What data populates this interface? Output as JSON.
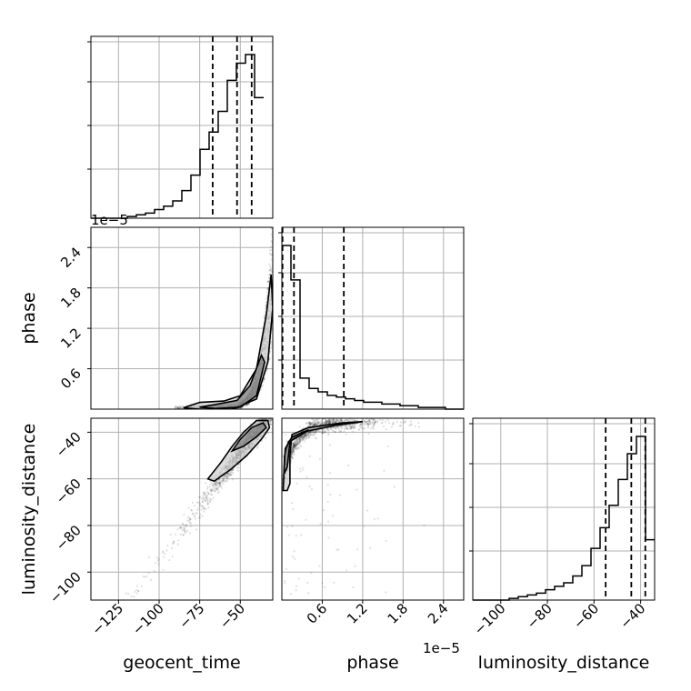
{
  "chart_data": {
    "type": "corner",
    "colors": {
      "grid": "#b0b0b0",
      "line": "#000000",
      "points": "#000000",
      "background": "#ffffff"
    },
    "variables": [
      {
        "name": "geocent_time",
        "range": [
          -142,
          -30
        ],
        "ticks": [
          -125,
          -100,
          -75,
          -50
        ],
        "tick_labels": [
          "−125",
          "−100",
          "−75",
          "−50"
        ],
        "quantiles": [
          -67,
          -52,
          -43
        ]
      },
      {
        "name": "phase",
        "offset_label": "1e−5",
        "range": [
          0,
          2.7
        ],
        "ticks": [
          0.6,
          1.2,
          1.8,
          2.4
        ],
        "tick_labels": [
          "0.6",
          "1.2",
          "1.8",
          "2.4"
        ],
        "quantiles": [
          0.01,
          0.18,
          0.92
        ]
      },
      {
        "name": "luminosity_distance",
        "range": [
          -112,
          -34
        ],
        "ticks": [
          -100,
          -80,
          -60,
          -40
        ],
        "tick_labels": [
          "−100",
          "−80",
          "−60",
          "−40"
        ],
        "quantiles": [
          -55,
          -44,
          -38
        ]
      }
    ],
    "top_offset_label": "1e−5",
    "histograms": [
      {
        "variable": "geocent_time",
        "bin_width": 5.6,
        "counts": [
          0,
          0,
          0,
          0,
          1,
          2,
          3,
          5,
          7,
          10,
          16,
          25,
          40,
          50,
          62,
          80,
          90,
          95,
          70
        ]
      },
      {
        "variable": "phase",
        "bin_width": 0.135,
        "counts": [
          95,
          75,
          18,
          12,
          10,
          8,
          7,
          6,
          5,
          4,
          4,
          3,
          3,
          2,
          2,
          1,
          1,
          1,
          0,
          0
        ]
      },
      {
        "variable": "luminosity_distance",
        "bin_width": 3.9,
        "counts": [
          0,
          0,
          0,
          0,
          1,
          2,
          3,
          4,
          6,
          8,
          10,
          14,
          20,
          30,
          42,
          55,
          70,
          85,
          95,
          35
        ]
      }
    ],
    "pairs": [
      {
        "x": "geocent_time",
        "y": "phase",
        "contours": [
          [
            [
              -85,
              0.02
            ],
            [
              -75,
              0.1
            ],
            [
              -60,
              0.12
            ],
            [
              -50,
              0.2
            ],
            [
              -40,
              0.6
            ],
            [
              -34,
              1.4
            ],
            [
              -31,
              2.0
            ],
            [
              -30,
              1.5
            ],
            [
              -33,
              0.7
            ],
            [
              -40,
              0.15
            ],
            [
              -55,
              0.0
            ],
            [
              -75,
              0.0
            ],
            [
              -85,
              0.02
            ]
          ],
          [
            [
              -75,
              0.03
            ],
            [
              -65,
              0.07
            ],
            [
              -52,
              0.13
            ],
            [
              -44,
              0.35
            ],
            [
              -37,
              0.8
            ],
            [
              -35,
              0.7
            ],
            [
              -40,
              0.2
            ],
            [
              -50,
              0.03
            ],
            [
              -65,
              0.01
            ],
            [
              -75,
              0.03
            ]
          ]
        ]
      },
      {
        "x": "geocent_time",
        "y": "luminosity_distance",
        "contours": [
          [
            [
              -70,
              -60
            ],
            [
              -62,
              -53
            ],
            [
              -55,
              -46
            ],
            [
              -48,
              -40
            ],
            [
              -40,
              -35
            ],
            [
              -33,
              -35
            ],
            [
              -32,
              -38
            ],
            [
              -37,
              -43
            ],
            [
              -46,
              -50
            ],
            [
              -56,
              -56
            ],
            [
              -66,
              -61
            ],
            [
              -70,
              -60
            ]
          ],
          [
            [
              -55,
              -48
            ],
            [
              -50,
              -43
            ],
            [
              -43,
              -38
            ],
            [
              -36,
              -36
            ],
            [
              -34,
              -38
            ],
            [
              -40,
              -42
            ],
            [
              -48,
              -46
            ],
            [
              -55,
              -48
            ]
          ]
        ]
      },
      {
        "x": "phase",
        "y": "luminosity_distance",
        "contours": [
          [
            [
              0.02,
              -65
            ],
            [
              0.04,
              -50
            ],
            [
              0.1,
              -44
            ],
            [
              0.3,
              -40
            ],
            [
              0.8,
              -37
            ],
            [
              1.2,
              -35.5
            ],
            [
              0.9,
              -36
            ],
            [
              0.4,
              -38
            ],
            [
              0.15,
              -41
            ],
            [
              0.12,
              -50
            ],
            [
              0.12,
              -62
            ],
            [
              0.08,
              -65
            ],
            [
              0.02,
              -65
            ]
          ],
          [
            [
              0.03,
              -58
            ],
            [
              0.05,
              -47
            ],
            [
              0.15,
              -42
            ],
            [
              0.4,
              -39
            ],
            [
              0.35,
              -40
            ],
            [
              0.12,
              -44
            ],
            [
              0.08,
              -55
            ],
            [
              0.03,
              -58
            ]
          ]
        ]
      }
    ]
  }
}
